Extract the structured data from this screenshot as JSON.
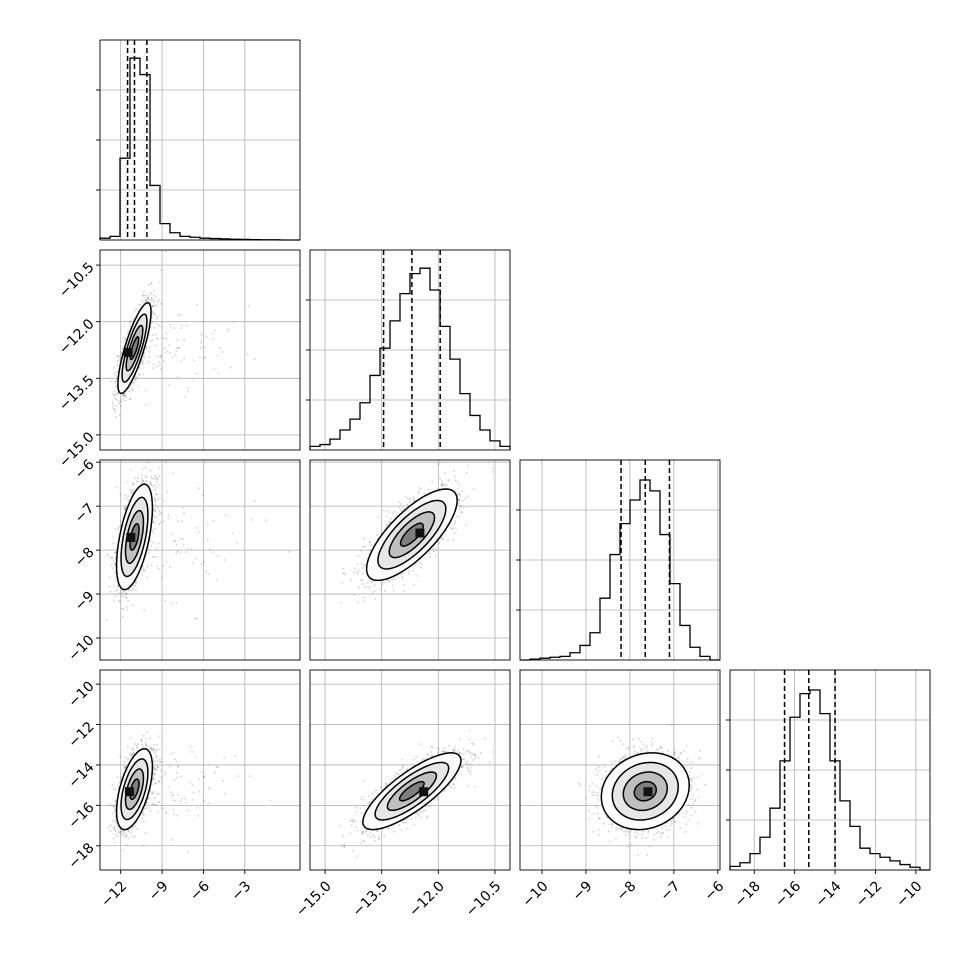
{
  "chart_data": {
    "type": "corner",
    "variables": [
      {
        "range": [
          -13.5,
          1.0
        ],
        "ticks": [
          -12,
          -9,
          -6,
          -3
        ],
        "tick_labels": [
          "−12",
          "−9",
          "−6",
          "−3"
        ]
      },
      {
        "range": [
          -15.4,
          -10.1
        ],
        "ticks": [
          -15.0,
          -13.5,
          -12.0,
          -10.5
        ],
        "tick_labels": [
          "−15.0",
          "−13.5",
          "−12.0",
          "−10.5"
        ]
      },
      {
        "range": [
          -10.5,
          -5.95
        ],
        "ticks": [
          -10,
          -9,
          -8,
          -7,
          -6
        ],
        "tick_labels": [
          "−10",
          "−9",
          "−8",
          "−7",
          "−6"
        ]
      },
      {
        "range": [
          -19.2,
          -9.3
        ],
        "ticks": [
          -18,
          -16,
          -14,
          -12,
          -10
        ],
        "tick_labels": [
          "−18",
          "−16",
          "−14",
          "−12",
          "−10"
        ]
      }
    ],
    "histograms": [
      {
        "edges": [
          -13.5,
          -12.775,
          -12.05,
          -11.325,
          -10.6,
          -9.875,
          -9.15,
          -8.425,
          -7.7,
          -6.975,
          -6.25,
          -5.525,
          -4.8,
          -4.075,
          -3.35,
          -2.625,
          -1.9,
          -1.175,
          -0.45,
          0.275,
          1.0
        ],
        "counts": [
          0.01,
          0.02,
          0.45,
          1.0,
          0.91,
          0.3,
          0.09,
          0.04,
          0.02,
          0.015,
          0.01,
          0.008,
          0.006,
          0.004,
          0.003,
          0.002,
          0.001,
          0.001,
          0.0,
          0.0
        ],
        "quantiles": [
          -11.5,
          -11.0,
          -10.1
        ],
        "ylim": [
          0,
          1.1
        ]
      },
      {
        "edges": [
          -15.4,
          -15.135,
          -14.87,
          -14.605,
          -14.34,
          -14.075,
          -13.81,
          -13.545,
          -13.28,
          -13.015,
          -12.75,
          -12.485,
          -12.22,
          -11.955,
          -11.69,
          -11.425,
          -11.16,
          -10.895,
          -10.63,
          -10.365,
          -10.1
        ],
        "counts": [
          0.02,
          0.03,
          0.06,
          0.11,
          0.17,
          0.26,
          0.41,
          0.56,
          0.71,
          0.86,
          0.97,
          1.0,
          0.88,
          0.68,
          0.5,
          0.31,
          0.19,
          0.11,
          0.05,
          0.02
        ],
        "quantiles": [
          -13.45,
          -12.7,
          -11.95
        ],
        "ylim": [
          0,
          1.1
        ]
      },
      {
        "edges": [
          -10.5,
          -10.2725,
          -10.045,
          -9.8175,
          -9.59,
          -9.3625,
          -9.135,
          -8.9075,
          -8.68,
          -8.4525,
          -8.225,
          -7.9975,
          -7.77,
          -7.5425,
          -7.315,
          -7.0875,
          -6.86,
          -6.6325,
          -6.405,
          -6.1775,
          -5.95
        ],
        "counts": [
          0.0,
          0.005,
          0.01,
          0.015,
          0.02,
          0.04,
          0.08,
          0.15,
          0.34,
          0.58,
          0.75,
          0.88,
          0.99,
          0.93,
          0.69,
          0.42,
          0.19,
          0.07,
          0.02,
          0.0
        ],
        "quantiles": [
          -8.2,
          -7.65,
          -7.1
        ],
        "ylim": [
          0,
          1.1
        ]
      },
      {
        "edges": [
          -19.2,
          -18.705,
          -18.21,
          -17.715,
          -17.22,
          -16.725,
          -16.23,
          -15.735,
          -15.24,
          -14.745,
          -14.25,
          -13.755,
          -13.26,
          -12.765,
          -12.27,
          -11.775,
          -11.28,
          -10.785,
          -10.29,
          -9.795,
          -9.3
        ],
        "counts": [
          0.02,
          0.04,
          0.09,
          0.18,
          0.34,
          0.6,
          0.84,
          0.97,
          0.99,
          0.86,
          0.6,
          0.38,
          0.24,
          0.12,
          0.09,
          0.07,
          0.05,
          0.03,
          0.015,
          0.0
        ],
        "quantiles": [
          -16.5,
          -15.3,
          -14.0
        ],
        "ylim": [
          0,
          1.1
        ]
      }
    ],
    "pairs": [
      {
        "row": 1,
        "col": 0,
        "mean": [
          -11.0,
          -12.7
        ],
        "sd": [
          0.6,
          0.6
        ],
        "rho": 0.8,
        "outlier_spread_x": 4.0,
        "core": [
          -11.5,
          -12.8
        ]
      },
      {
        "row": 2,
        "col": 0,
        "mean": [
          -11.0,
          -7.7
        ],
        "sd": [
          0.65,
          0.6
        ],
        "rho": 0.55,
        "outlier_spread_x": 4.0,
        "core": [
          -11.3,
          -7.7
        ]
      },
      {
        "row": 2,
        "col": 1,
        "mean": [
          -12.7,
          -7.65
        ],
        "sd": [
          0.6,
          0.52
        ],
        "rho": 0.75,
        "outlier_spread_x": 0.0,
        "core": [
          -12.5,
          -7.6
        ]
      },
      {
        "row": 3,
        "col": 0,
        "mean": [
          -11.0,
          -15.2
        ],
        "sd": [
          0.65,
          1.0
        ],
        "rho": 0.55,
        "outlier_spread_x": 3.5,
        "core": [
          -11.4,
          -15.3
        ]
      },
      {
        "row": 3,
        "col": 1,
        "mean": [
          -12.7,
          -15.3
        ],
        "sd": [
          0.65,
          0.95
        ],
        "rho": 0.8,
        "outlier_spread_x": 0.0,
        "core": [
          -12.4,
          -15.3
        ]
      },
      {
        "row": 3,
        "col": 2,
        "mean": [
          -7.65,
          -15.3
        ],
        "sd": [
          0.5,
          0.95
        ],
        "rho": 0.15,
        "outlier_spread_x": 0.0,
        "core": [
          -7.6,
          -15.3
        ]
      }
    ],
    "contour_levels_sigma": [
      0.5,
      1.0,
      1.5,
      2.0
    ],
    "grid": true,
    "style": {
      "line_color": "#000000",
      "grid_color": "#b0b0b0",
      "point_color": "#555555",
      "fill_dark": "#3a3a3a",
      "fill_mid": "#7a7a7a",
      "fill_light": "#bdbdbd",
      "fill_faint": "#e6e6e6"
    }
  }
}
